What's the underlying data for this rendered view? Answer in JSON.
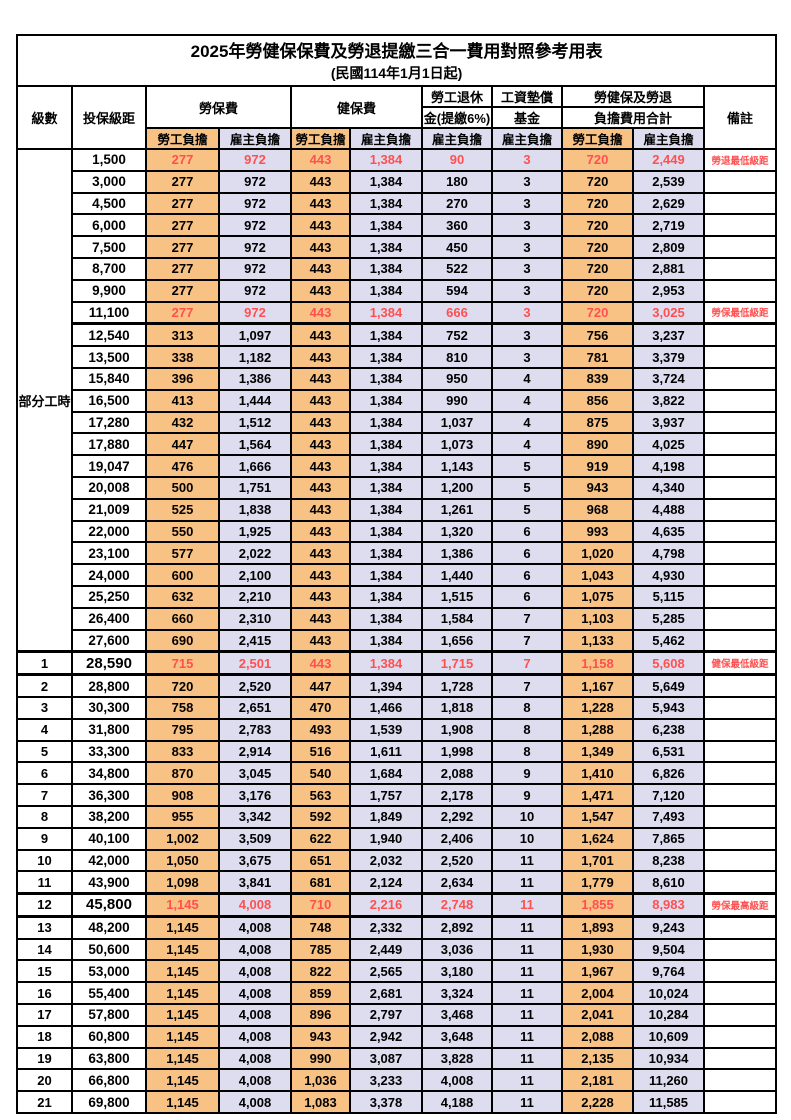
{
  "title": "2025年勞健保保費及勞退提繳三合一費用對照參考用表",
  "subtitle": "(民國114年1月1日起)",
  "colors": {
    "employee_col_bg": "#F9C285",
    "employer_col_bg": "#DEDCEF",
    "highlight_text": "#FF5050",
    "border": "#000000"
  },
  "header": {
    "level": "級數",
    "bracket": "投保級距",
    "labor_fee": "勞保費",
    "health_fee": "健保費",
    "pension_line1": "勞工退休",
    "pension_line2": "金(提繳6%)",
    "wage_fund_line1": "工資墊償",
    "wage_fund_line2": "基金",
    "total_line1": "勞健保及勞退",
    "total_line2": "負擔費用合計",
    "note": "備註",
    "employee": "勞工負擔",
    "employer": "雇主負擔"
  },
  "part_time_label": "部分工時",
  "rows": [
    {
      "level": "",
      "bracket": "1,500",
      "values": [
        "277",
        "972",
        "443",
        "1,384",
        "90",
        "3",
        "720",
        "2,449"
      ],
      "note": "勞退最低級距",
      "red": true,
      "key": false
    },
    {
      "level": "",
      "bracket": "3,000",
      "values": [
        "277",
        "972",
        "443",
        "1,384",
        "180",
        "3",
        "720",
        "2,539"
      ],
      "note": "",
      "red": false,
      "key": false
    },
    {
      "level": "",
      "bracket": "4,500",
      "values": [
        "277",
        "972",
        "443",
        "1,384",
        "270",
        "3",
        "720",
        "2,629"
      ],
      "note": "",
      "red": false,
      "key": false
    },
    {
      "level": "",
      "bracket": "6,000",
      "values": [
        "277",
        "972",
        "443",
        "1,384",
        "360",
        "3",
        "720",
        "2,719"
      ],
      "note": "",
      "red": false,
      "key": false
    },
    {
      "level": "",
      "bracket": "7,500",
      "values": [
        "277",
        "972",
        "443",
        "1,384",
        "450",
        "3",
        "720",
        "2,809"
      ],
      "note": "",
      "red": false,
      "key": false
    },
    {
      "level": "",
      "bracket": "8,700",
      "values": [
        "277",
        "972",
        "443",
        "1,384",
        "522",
        "3",
        "720",
        "2,881"
      ],
      "note": "",
      "red": false,
      "key": false
    },
    {
      "level": "",
      "bracket": "9,900",
      "values": [
        "277",
        "972",
        "443",
        "1,384",
        "594",
        "3",
        "720",
        "2,953"
      ],
      "note": "",
      "red": false,
      "key": false
    },
    {
      "level": "",
      "bracket": "11,100",
      "values": [
        "277",
        "972",
        "443",
        "1,384",
        "666",
        "3",
        "720",
        "3,025"
      ],
      "note": "勞保最低級距",
      "red": true,
      "key": false,
      "thick_bottom": true
    },
    {
      "level": "",
      "bracket": "12,540",
      "values": [
        "313",
        "1,097",
        "443",
        "1,384",
        "752",
        "3",
        "756",
        "3,237"
      ],
      "note": "",
      "red": false,
      "key": false
    },
    {
      "level": "",
      "bracket": "13,500",
      "values": [
        "338",
        "1,182",
        "443",
        "1,384",
        "810",
        "3",
        "781",
        "3,379"
      ],
      "note": "",
      "red": false,
      "key": false
    },
    {
      "level": "",
      "bracket": "15,840",
      "values": [
        "396",
        "1,386",
        "443",
        "1,384",
        "950",
        "4",
        "839",
        "3,724"
      ],
      "note": "",
      "red": false,
      "key": false
    },
    {
      "level": "",
      "bracket": "16,500",
      "values": [
        "413",
        "1,444",
        "443",
        "1,384",
        "990",
        "4",
        "856",
        "3,822"
      ],
      "note": "",
      "red": false,
      "key": false
    },
    {
      "level": "",
      "bracket": "17,280",
      "values": [
        "432",
        "1,512",
        "443",
        "1,384",
        "1,037",
        "4",
        "875",
        "3,937"
      ],
      "note": "",
      "red": false,
      "key": false
    },
    {
      "level": "",
      "bracket": "17,880",
      "values": [
        "447",
        "1,564",
        "443",
        "1,384",
        "1,073",
        "4",
        "890",
        "4,025"
      ],
      "note": "",
      "red": false,
      "key": false
    },
    {
      "level": "",
      "bracket": "19,047",
      "values": [
        "476",
        "1,666",
        "443",
        "1,384",
        "1,143",
        "5",
        "919",
        "4,198"
      ],
      "note": "",
      "red": false,
      "key": false
    },
    {
      "level": "",
      "bracket": "20,008",
      "values": [
        "500",
        "1,751",
        "443",
        "1,384",
        "1,200",
        "5",
        "943",
        "4,340"
      ],
      "note": "",
      "red": false,
      "key": false
    },
    {
      "level": "",
      "bracket": "21,009",
      "values": [
        "525",
        "1,838",
        "443",
        "1,384",
        "1,261",
        "5",
        "968",
        "4,488"
      ],
      "note": "",
      "red": false,
      "key": false
    },
    {
      "level": "",
      "bracket": "22,000",
      "values": [
        "550",
        "1,925",
        "443",
        "1,384",
        "1,320",
        "6",
        "993",
        "4,635"
      ],
      "note": "",
      "red": false,
      "key": false
    },
    {
      "level": "",
      "bracket": "23,100",
      "values": [
        "577",
        "2,022",
        "443",
        "1,384",
        "1,386",
        "6",
        "1,020",
        "4,798"
      ],
      "note": "",
      "red": false,
      "key": false
    },
    {
      "level": "",
      "bracket": "24,000",
      "values": [
        "600",
        "2,100",
        "443",
        "1,384",
        "1,440",
        "6",
        "1,043",
        "4,930"
      ],
      "note": "",
      "red": false,
      "key": false
    },
    {
      "level": "",
      "bracket": "25,250",
      "values": [
        "632",
        "2,210",
        "443",
        "1,384",
        "1,515",
        "6",
        "1,075",
        "5,115"
      ],
      "note": "",
      "red": false,
      "key": false
    },
    {
      "level": "",
      "bracket": "26,400",
      "values": [
        "660",
        "2,310",
        "443",
        "1,384",
        "1,584",
        "7",
        "1,103",
        "5,285"
      ],
      "note": "",
      "red": false,
      "key": false
    },
    {
      "level": "",
      "bracket": "27,600",
      "values": [
        "690",
        "2,415",
        "443",
        "1,384",
        "1,656",
        "7",
        "1,133",
        "5,462"
      ],
      "note": "",
      "red": false,
      "key": false
    },
    {
      "level": "1",
      "bracket": "28,590",
      "values": [
        "715",
        "2,501",
        "443",
        "1,384",
        "1,715",
        "7",
        "1,158",
        "5,608"
      ],
      "note": "健保最低級距",
      "red": true,
      "key": true
    },
    {
      "level": "2",
      "bracket": "28,800",
      "values": [
        "720",
        "2,520",
        "447",
        "1,394",
        "1,728",
        "7",
        "1,167",
        "5,649"
      ],
      "note": "",
      "red": false,
      "key": false
    },
    {
      "level": "3",
      "bracket": "30,300",
      "values": [
        "758",
        "2,651",
        "470",
        "1,466",
        "1,818",
        "8",
        "1,228",
        "5,943"
      ],
      "note": "",
      "red": false,
      "key": false
    },
    {
      "level": "4",
      "bracket": "31,800",
      "values": [
        "795",
        "2,783",
        "493",
        "1,539",
        "1,908",
        "8",
        "1,288",
        "6,238"
      ],
      "note": "",
      "red": false,
      "key": false
    },
    {
      "level": "5",
      "bracket": "33,300",
      "values": [
        "833",
        "2,914",
        "516",
        "1,611",
        "1,998",
        "8",
        "1,349",
        "6,531"
      ],
      "note": "",
      "red": false,
      "key": false
    },
    {
      "level": "6",
      "bracket": "34,800",
      "values": [
        "870",
        "3,045",
        "540",
        "1,684",
        "2,088",
        "9",
        "1,410",
        "6,826"
      ],
      "note": "",
      "red": false,
      "key": false
    },
    {
      "level": "7",
      "bracket": "36,300",
      "values": [
        "908",
        "3,176",
        "563",
        "1,757",
        "2,178",
        "9",
        "1,471",
        "7,120"
      ],
      "note": "",
      "red": false,
      "key": false
    },
    {
      "level": "8",
      "bracket": "38,200",
      "values": [
        "955",
        "3,342",
        "592",
        "1,849",
        "2,292",
        "10",
        "1,547",
        "7,493"
      ],
      "note": "",
      "red": false,
      "key": false
    },
    {
      "level": "9",
      "bracket": "40,100",
      "values": [
        "1,002",
        "3,509",
        "622",
        "1,940",
        "2,406",
        "10",
        "1,624",
        "7,865"
      ],
      "note": "",
      "red": false,
      "key": false
    },
    {
      "level": "10",
      "bracket": "42,000",
      "values": [
        "1,050",
        "3,675",
        "651",
        "2,032",
        "2,520",
        "11",
        "1,701",
        "8,238"
      ],
      "note": "",
      "red": false,
      "key": false
    },
    {
      "level": "11",
      "bracket": "43,900",
      "values": [
        "1,098",
        "3,841",
        "681",
        "2,124",
        "2,634",
        "11",
        "1,779",
        "8,610"
      ],
      "note": "",
      "red": false,
      "key": false
    },
    {
      "level": "12",
      "bracket": "45,800",
      "values": [
        "1,145",
        "4,008",
        "710",
        "2,216",
        "2,748",
        "11",
        "1,855",
        "8,983"
      ],
      "note": "勞保最高級距",
      "red": true,
      "key": true
    },
    {
      "level": "13",
      "bracket": "48,200",
      "values": [
        "1,145",
        "4,008",
        "748",
        "2,332",
        "2,892",
        "11",
        "1,893",
        "9,243"
      ],
      "note": "",
      "red": false,
      "key": false
    },
    {
      "level": "14",
      "bracket": "50,600",
      "values": [
        "1,145",
        "4,008",
        "785",
        "2,449",
        "3,036",
        "11",
        "1,930",
        "9,504"
      ],
      "note": "",
      "red": false,
      "key": false
    },
    {
      "level": "15",
      "bracket": "53,000",
      "values": [
        "1,145",
        "4,008",
        "822",
        "2,565",
        "3,180",
        "11",
        "1,967",
        "9,764"
      ],
      "note": "",
      "red": false,
      "key": false
    },
    {
      "level": "16",
      "bracket": "55,400",
      "values": [
        "1,145",
        "4,008",
        "859",
        "2,681",
        "3,324",
        "11",
        "2,004",
        "10,024"
      ],
      "note": "",
      "red": false,
      "key": false
    },
    {
      "level": "17",
      "bracket": "57,800",
      "values": [
        "1,145",
        "4,008",
        "896",
        "2,797",
        "3,468",
        "11",
        "2,041",
        "10,284"
      ],
      "note": "",
      "red": false,
      "key": false
    },
    {
      "level": "18",
      "bracket": "60,800",
      "values": [
        "1,145",
        "4,008",
        "943",
        "2,942",
        "3,648",
        "11",
        "2,088",
        "10,609"
      ],
      "note": "",
      "red": false,
      "key": false
    },
    {
      "level": "19",
      "bracket": "63,800",
      "values": [
        "1,145",
        "4,008",
        "990",
        "3,087",
        "3,828",
        "11",
        "2,135",
        "10,934"
      ],
      "note": "",
      "red": false,
      "key": false
    },
    {
      "level": "20",
      "bracket": "66,800",
      "values": [
        "1,145",
        "4,008",
        "1,036",
        "3,233",
        "4,008",
        "11",
        "2,181",
        "11,260"
      ],
      "note": "",
      "red": false,
      "key": false
    },
    {
      "level": "21",
      "bracket": "69,800",
      "values": [
        "1,145",
        "4,008",
        "1,083",
        "3,378",
        "4,188",
        "11",
        "2,228",
        "11,585"
      ],
      "note": "",
      "red": false,
      "key": false
    }
  ]
}
